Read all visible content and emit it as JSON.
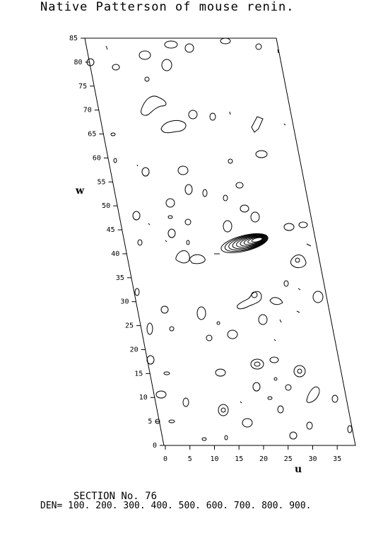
{
  "title": "Native Patterson of mouse renin.",
  "section_label": "SECTION No. 76",
  "den_label": "DEN= 100. 200. 300. 400. 500. 600. 700. 800. 900.",
  "axes": {
    "u": {
      "label": "u",
      "ticks": [
        "0",
        "5",
        "10",
        "15",
        "20",
        "25",
        "30",
        "35"
      ]
    },
    "w": {
      "label": "w",
      "ticks": [
        "0",
        "5",
        "10",
        "15",
        "20",
        "25",
        "30",
        "35",
        "40",
        "45",
        "50",
        "55",
        "60",
        "65",
        "70",
        "75",
        "80",
        "85"
      ]
    }
  },
  "contour_levels": [
    100,
    200,
    300,
    400,
    500,
    600,
    700,
    800,
    900
  ],
  "peaks": [
    {
      "u": 18,
      "w": 42,
      "levels": 9
    },
    {
      "u": 9,
      "w": 80,
      "levels": 2
    },
    {
      "u": 6,
      "w": 57,
      "levels": 2
    },
    {
      "u": 19,
      "w": 47,
      "levels": 2
    },
    {
      "u": 28,
      "w": 39,
      "levels": 2
    },
    {
      "u": 19,
      "w": 17,
      "levels": 2
    },
    {
      "u": 28,
      "w": 15,
      "levels": 2
    },
    {
      "u": 12,
      "w": 8,
      "levels": 2
    }
  ]
}
